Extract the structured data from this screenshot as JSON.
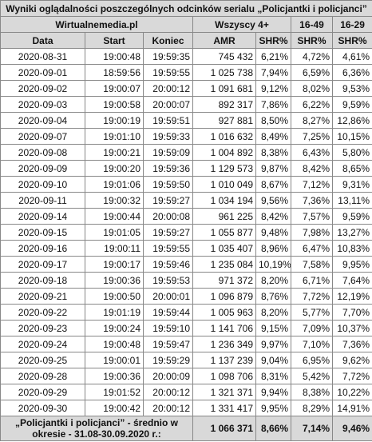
{
  "header": {
    "title": "Wyniki oglądalności poszczególnych odcinków serialu „Policjantki i policjanci”",
    "source": "Wirtualnemedia.pl",
    "groups": [
      "Wszyscy 4+",
      "16-49",
      "16-29"
    ],
    "columns": [
      "Data",
      "Start",
      "Koniec",
      "AMR",
      "SHR%",
      "SHR%",
      "SHR%"
    ]
  },
  "table": {
    "rows": [
      [
        "2020-08-31",
        "19:00:48",
        "19:59:35",
        "745 432",
        "6,21%",
        "4,72%",
        "4,61%"
      ],
      [
        "2020-09-01",
        "18:59:56",
        "19:59:55",
        "1 025 738",
        "7,94%",
        "6,59%",
        "6,36%"
      ],
      [
        "2020-09-02",
        "19:00:07",
        "20:00:12",
        "1 091 681",
        "9,12%",
        "8,02%",
        "9,53%"
      ],
      [
        "2020-09-03",
        "19:00:58",
        "20:00:07",
        "892 317",
        "7,86%",
        "6,22%",
        "9,59%"
      ],
      [
        "2020-09-04",
        "19:00:19",
        "19:59:51",
        "927 881",
        "8,50%",
        "8,27%",
        "12,86%"
      ],
      [
        "2020-09-07",
        "19:01:10",
        "19:59:33",
        "1 016 632",
        "8,49%",
        "7,25%",
        "10,15%"
      ],
      [
        "2020-09-08",
        "19:00:21",
        "19:59:09",
        "1 004 892",
        "8,38%",
        "6,43%",
        "5,80%"
      ],
      [
        "2020-09-09",
        "19:00:20",
        "19:59:36",
        "1 129 573",
        "9,87%",
        "8,42%",
        "8,65%"
      ],
      [
        "2020-09-10",
        "19:01:06",
        "19:59:50",
        "1 010 049",
        "8,67%",
        "7,12%",
        "9,31%"
      ],
      [
        "2020-09-11",
        "19:00:32",
        "19:59:27",
        "1 034 194",
        "9,56%",
        "7,36%",
        "13,11%"
      ],
      [
        "2020-09-14",
        "19:00:44",
        "20:00:08",
        "961 225",
        "8,42%",
        "7,57%",
        "9,59%"
      ],
      [
        "2020-09-15",
        "19:01:05",
        "19:59:27",
        "1 055 877",
        "9,48%",
        "7,98%",
        "13,27%"
      ],
      [
        "2020-09-16",
        "19:00:11",
        "19:59:55",
        "1 035 407",
        "8,96%",
        "6,47%",
        "10,83%"
      ],
      [
        "2020-09-17",
        "19:00:17",
        "19:59:46",
        "1 235 084",
        "10,19%",
        "7,58%",
        "9,95%"
      ],
      [
        "2020-09-18",
        "19:00:36",
        "19:59:53",
        "971 372",
        "8,20%",
        "6,71%",
        "7,64%"
      ],
      [
        "2020-09-21",
        "19:00:50",
        "20:00:01",
        "1 096 879",
        "8,76%",
        "7,72%",
        "12,19%"
      ],
      [
        "2020-09-22",
        "19:01:19",
        "19:59:44",
        "1 005 963",
        "8,20%",
        "5,77%",
        "7,70%"
      ],
      [
        "2020-09-23",
        "19:00:24",
        "19:59:10",
        "1 141 706",
        "9,15%",
        "7,09%",
        "10,37%"
      ],
      [
        "2020-09-24",
        "19:00:48",
        "19:59:47",
        "1 236 349",
        "9,97%",
        "7,10%",
        "7,36%"
      ],
      [
        "2020-09-25",
        "19:00:01",
        "19:59:29",
        "1 137 239",
        "9,04%",
        "6,95%",
        "9,62%"
      ],
      [
        "2020-09-28",
        "19:00:36",
        "20:00:09",
        "1 098 706",
        "8,31%",
        "5,42%",
        "7,72%"
      ],
      [
        "2020-09-29",
        "19:01:52",
        "20:00:12",
        "1 321 371",
        "9,94%",
        "8,38%",
        "10,22%"
      ],
      [
        "2020-09-30",
        "19:00:42",
        "20:00:12",
        "1 331 417",
        "9,95%",
        "8,29%",
        "14,91%"
      ]
    ]
  },
  "footer": {
    "label": "„Policjantki i policjanci” - średnio w okresie - 31.08-30.09.2020 r.:",
    "values": [
      "1 066 371",
      "8,66%",
      "7,14%",
      "9,46%"
    ]
  }
}
